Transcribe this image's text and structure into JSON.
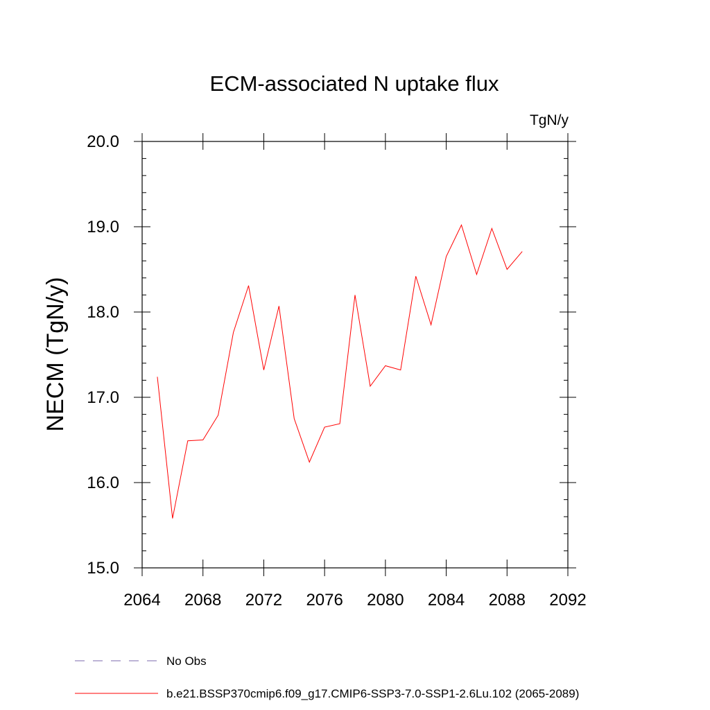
{
  "chart_data": {
    "type": "line",
    "title": "ECM-associated N uptake flux",
    "units": "TgN/y",
    "xlabel": "",
    "ylabel": "NECM  (TgN/y)",
    "xlim": [
      2064,
      2092
    ],
    "ylim": [
      15.0,
      20.0
    ],
    "xticks": [
      2064,
      2068,
      2072,
      2076,
      2080,
      2084,
      2088,
      2092
    ],
    "xtick_labels": [
      "2064",
      "2068",
      "2072",
      "2076",
      "2080",
      "2084",
      "2088",
      "2092"
    ],
    "yticks": [
      15.0,
      16.0,
      17.0,
      18.0,
      19.0,
      20.0
    ],
    "ytick_labels": [
      "15.0",
      "16.0",
      "17.0",
      "18.0",
      "19.0",
      "20.0"
    ],
    "grid": false,
    "legend_position": "bottom",
    "series": [
      {
        "name": "b.e21.BSSP370cmip6.f09_g17.CMIP6-SSP3-7.0-SSP1-2.6Lu.102 (2065-2089)",
        "color": "#ff0000",
        "x": [
          2065,
          2066,
          2067,
          2068,
          2069,
          2070,
          2071,
          2072,
          2073,
          2074,
          2075,
          2076,
          2077,
          2078,
          2079,
          2080,
          2081,
          2082,
          2083,
          2084,
          2085,
          2086,
          2087,
          2088,
          2089
        ],
        "y": [
          17.24,
          15.58,
          16.49,
          16.5,
          16.79,
          17.76,
          18.31,
          17.32,
          18.07,
          16.75,
          16.24,
          16.65,
          16.69,
          18.2,
          17.13,
          17.37,
          17.32,
          18.42,
          17.85,
          18.65,
          19.02,
          18.44,
          18.98,
          18.5,
          18.71
        ]
      }
    ],
    "legend": [
      {
        "label": "No Obs",
        "style": "dashed",
        "color": "#7b68ae"
      },
      {
        "label": "b.e21.BSSP370cmip6.f09_g17.CMIP6-SSP3-7.0-SSP1-2.6Lu.102 (2065-2089)",
        "style": "solid",
        "color": "#ff0000"
      }
    ]
  }
}
